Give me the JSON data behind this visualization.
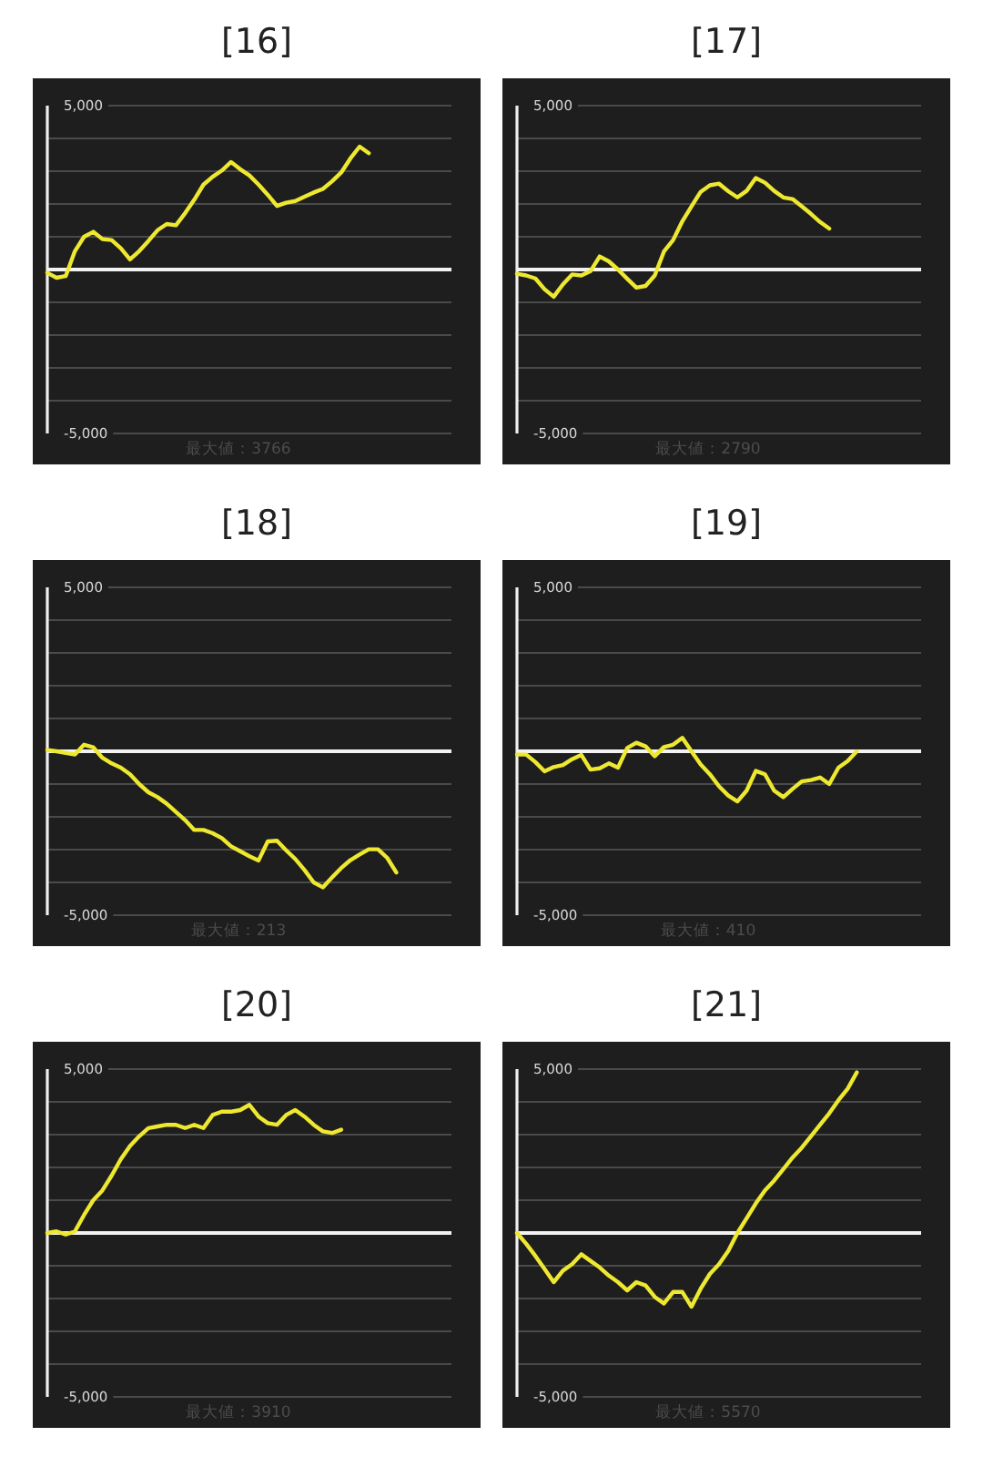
{
  "chart_data": [
    {
      "type": "line",
      "title": "[16]",
      "categories": [
        null,
        null,
        null,
        null,
        null,
        null,
        null,
        null,
        null,
        null,
        null,
        null,
        null,
        null,
        null,
        null,
        null,
        null,
        null,
        null,
        null,
        null,
        null,
        null,
        null,
        null,
        null,
        null,
        null,
        null,
        null,
        null,
        null,
        null,
        null,
        null,
        null,
        null,
        null,
        null,
        null,
        null,
        null,
        null,
        null
      ],
      "series": [
        {
          "color": "#eee830",
          "values": [
            -100,
            -250,
            -200,
            560,
            1000,
            1150,
            930,
            900,
            650,
            310,
            560,
            870,
            1200,
            1390,
            1350,
            1720,
            2130,
            2590,
            2830,
            3020,
            3280,
            3060,
            2870,
            2590,
            2280,
            1940,
            2040,
            2090,
            2220,
            2350,
            2460,
            2690,
            2960,
            3390,
            3750,
            3550,
            null,
            null,
            null,
            null,
            null,
            null,
            null,
            null,
            null
          ]
        }
      ],
      "ylim": [
        -5000,
        5000
      ],
      "yticks": [
        {
          "value": 5000,
          "label": "5,000"
        },
        {
          "value": 4000,
          "label": null
        },
        {
          "value": 3000,
          "label": null
        },
        {
          "value": 2000,
          "label": null
        },
        {
          "value": 1000,
          "label": null
        },
        {
          "value": 0,
          "label": null
        },
        {
          "value": -1000,
          "label": null
        },
        {
          "value": -2000,
          "label": null
        },
        {
          "value": -3000,
          "label": null
        },
        {
          "value": -4000,
          "label": null
        },
        {
          "value": -5000,
          "label": "-5,000"
        }
      ],
      "grid": "y",
      "tick_labels": "y",
      "ref_lines": [
        {
          "axis": "y",
          "value": 0,
          "color": "#f2f2f2"
        }
      ],
      "annotations": [
        "最大値：3766"
      ]
    },
    {
      "type": "line",
      "title": "[17]",
      "categories": [
        null,
        null,
        null,
        null,
        null,
        null,
        null,
        null,
        null,
        null,
        null,
        null,
        null,
        null,
        null,
        null,
        null,
        null,
        null,
        null,
        null,
        null,
        null,
        null,
        null,
        null,
        null,
        null,
        null,
        null,
        null,
        null,
        null,
        null,
        null,
        null,
        null,
        null,
        null,
        null,
        null,
        null,
        null,
        null,
        null
      ],
      "series": [
        {
          "color": "#eee830",
          "values": [
            -130,
            -180,
            -270,
            -600,
            -830,
            -450,
            -150,
            -180,
            -50,
            400,
            250,
            0,
            -280,
            -550,
            -500,
            -180,
            550,
            900,
            1470,
            1930,
            2370,
            2570,
            2620,
            2390,
            2200,
            2400,
            2790,
            2650,
            2400,
            2200,
            2150,
            1930,
            1700,
            1450,
            1250,
            null,
            null,
            null,
            null,
            null,
            null,
            null,
            null,
            null,
            null
          ]
        }
      ],
      "ylim": [
        -5000,
        5000
      ],
      "yticks": [
        {
          "value": 5000,
          "label": "5,000"
        },
        {
          "value": 4000,
          "label": null
        },
        {
          "value": 3000,
          "label": null
        },
        {
          "value": 2000,
          "label": null
        },
        {
          "value": 1000,
          "label": null
        },
        {
          "value": 0,
          "label": null
        },
        {
          "value": -1000,
          "label": null
        },
        {
          "value": -2000,
          "label": null
        },
        {
          "value": -3000,
          "label": null
        },
        {
          "value": -4000,
          "label": null
        },
        {
          "value": -5000,
          "label": "-5,000"
        }
      ],
      "grid": "y",
      "tick_labels": "y",
      "ref_lines": [
        {
          "axis": "y",
          "value": 0,
          "color": "#f2f2f2"
        }
      ],
      "annotations": [
        "最大値：2790"
      ]
    },
    {
      "type": "line",
      "title": "[18]",
      "categories": [
        null,
        null,
        null,
        null,
        null,
        null,
        null,
        null,
        null,
        null,
        null,
        null,
        null,
        null,
        null,
        null,
        null,
        null,
        null,
        null,
        null,
        null,
        null,
        null,
        null,
        null,
        null,
        null,
        null,
        null,
        null,
        null,
        null,
        null,
        null,
        null,
        null,
        null,
        null,
        null,
        null,
        null,
        null,
        null,
        null
      ],
      "series": [
        {
          "color": "#eee830",
          "values": [
            40,
            0,
            -50,
            -100,
            200,
            120,
            -200,
            -370,
            -500,
            -700,
            -1000,
            -1250,
            -1400,
            -1600,
            -1850,
            -2100,
            -2400,
            -2400,
            -2500,
            -2650,
            -2900,
            -3050,
            -3200,
            -3330,
            -2750,
            -2730,
            -3020,
            -3290,
            -3620,
            -4000,
            -4150,
            -3850,
            -3560,
            -3320,
            -3150,
            -2990,
            -2990,
            -3250,
            -3700,
            null,
            null,
            null,
            null,
            null,
            null
          ]
        }
      ],
      "ylim": [
        -5000,
        5000
      ],
      "yticks": [
        {
          "value": 5000,
          "label": "5,000"
        },
        {
          "value": 4000,
          "label": null
        },
        {
          "value": 3000,
          "label": null
        },
        {
          "value": 2000,
          "label": null
        },
        {
          "value": 1000,
          "label": null
        },
        {
          "value": 0,
          "label": null
        },
        {
          "value": -1000,
          "label": null
        },
        {
          "value": -2000,
          "label": null
        },
        {
          "value": -3000,
          "label": null
        },
        {
          "value": -4000,
          "label": null
        },
        {
          "value": -5000,
          "label": "-5,000"
        }
      ],
      "grid": "y",
      "tick_labels": "y",
      "ref_lines": [
        {
          "axis": "y",
          "value": 0,
          "color": "#f2f2f2"
        }
      ],
      "annotations": [
        "最大値：213"
      ]
    },
    {
      "type": "line",
      "title": "[19]",
      "categories": [
        null,
        null,
        null,
        null,
        null,
        null,
        null,
        null,
        null,
        null,
        null,
        null,
        null,
        null,
        null,
        null,
        null,
        null,
        null,
        null,
        null,
        null,
        null,
        null,
        null,
        null,
        null,
        null,
        null,
        null,
        null,
        null,
        null,
        null,
        null,
        null,
        null,
        null,
        null,
        null,
        null,
        null,
        null,
        null,
        null
      ],
      "series": [
        {
          "color": "#eee830",
          "values": [
            -100,
            -100,
            -330,
            -610,
            -480,
            -420,
            -240,
            -110,
            -560,
            -520,
            -370,
            -500,
            100,
            260,
            150,
            -150,
            130,
            200,
            410,
            0,
            -400,
            -700,
            -1070,
            -1350,
            -1530,
            -1200,
            -600,
            -700,
            -1200,
            -1400,
            -1150,
            -920,
            -880,
            -800,
            -1000,
            -500,
            -300,
            0,
            null,
            null,
            null,
            null,
            null,
            null,
            null
          ]
        }
      ],
      "ylim": [
        -5000,
        5000
      ],
      "yticks": [
        {
          "value": 5000,
          "label": "5,000"
        },
        {
          "value": 4000,
          "label": null
        },
        {
          "value": 3000,
          "label": null
        },
        {
          "value": 2000,
          "label": null
        },
        {
          "value": 1000,
          "label": null
        },
        {
          "value": 0,
          "label": null
        },
        {
          "value": -1000,
          "label": null
        },
        {
          "value": -2000,
          "label": null
        },
        {
          "value": -3000,
          "label": null
        },
        {
          "value": -4000,
          "label": null
        },
        {
          "value": -5000,
          "label": "-5,000"
        }
      ],
      "grid": "y",
      "tick_labels": "y",
      "ref_lines": [
        {
          "axis": "y",
          "value": 0,
          "color": "#f2f2f2"
        }
      ],
      "annotations": [
        "最大値：410"
      ]
    },
    {
      "type": "line",
      "title": "[20]",
      "categories": [
        null,
        null,
        null,
        null,
        null,
        null,
        null,
        null,
        null,
        null,
        null,
        null,
        null,
        null,
        null,
        null,
        null,
        null,
        null,
        null,
        null,
        null,
        null,
        null,
        null,
        null,
        null,
        null,
        null,
        null,
        null,
        null,
        null,
        null,
        null,
        null,
        null,
        null,
        null,
        null,
        null,
        null,
        null,
        null,
        null
      ],
      "series": [
        {
          "color": "#eee830",
          "values": [
            0,
            50,
            -50,
            50,
            550,
            1000,
            1300,
            1750,
            2250,
            2650,
            2950,
            3200,
            3250,
            3300,
            3300,
            3200,
            3300,
            3200,
            3600,
            3700,
            3700,
            3750,
            3910,
            3550,
            3350,
            3300,
            3600,
            3750,
            3550,
            3300,
            3100,
            3050,
            3150,
            null,
            null,
            null,
            null,
            null,
            null,
            null,
            null,
            null,
            null,
            null,
            null
          ]
        }
      ],
      "ylim": [
        -5000,
        5000
      ],
      "yticks": [
        {
          "value": 5000,
          "label": "5,000"
        },
        {
          "value": 4000,
          "label": null
        },
        {
          "value": 3000,
          "label": null
        },
        {
          "value": 2000,
          "label": null
        },
        {
          "value": 1000,
          "label": null
        },
        {
          "value": 0,
          "label": null
        },
        {
          "value": -1000,
          "label": null
        },
        {
          "value": -2000,
          "label": null
        },
        {
          "value": -3000,
          "label": null
        },
        {
          "value": -4000,
          "label": null
        },
        {
          "value": -5000,
          "label": "-5,000"
        }
      ],
      "grid": "y",
      "tick_labels": "y",
      "ref_lines": [
        {
          "axis": "y",
          "value": 0,
          "color": "#f2f2f2"
        }
      ],
      "annotations": [
        "最大値：3910"
      ]
    },
    {
      "type": "line",
      "title": "[21]",
      "categories": [
        null,
        null,
        null,
        null,
        null,
        null,
        null,
        null,
        null,
        null,
        null,
        null,
        null,
        null,
        null,
        null,
        null,
        null,
        null,
        null,
        null,
        null,
        null,
        null,
        null,
        null,
        null,
        null,
        null,
        null,
        null,
        null,
        null,
        null,
        null,
        null,
        null,
        null,
        null,
        null,
        null,
        null,
        null,
        null,
        null
      ],
      "series": [
        {
          "color": "#eee830",
          "values": [
            0,
            -330,
            -700,
            -1100,
            -1500,
            -1150,
            -950,
            -650,
            -850,
            -1050,
            -1300,
            -1500,
            -1750,
            -1500,
            -1600,
            -1950,
            -2150,
            -1800,
            -1800,
            -2250,
            -1700,
            -1250,
            -950,
            -550,
            0,
            450,
            900,
            1300,
            1600,
            1950,
            2300,
            2600,
            2950,
            3300,
            3650,
            4050,
            4400,
            4900,
            null,
            null,
            null,
            null,
            null,
            null,
            null
          ]
        }
      ],
      "ylim": [
        -5000,
        5000
      ],
      "yticks": [
        {
          "value": 5000,
          "label": "5,000"
        },
        {
          "value": 4000,
          "label": null
        },
        {
          "value": 3000,
          "label": null
        },
        {
          "value": 2000,
          "label": null
        },
        {
          "value": 1000,
          "label": null
        },
        {
          "value": 0,
          "label": null
        },
        {
          "value": -1000,
          "label": null
        },
        {
          "value": -2000,
          "label": null
        },
        {
          "value": -3000,
          "label": null
        },
        {
          "value": -4000,
          "label": null
        },
        {
          "value": -5000,
          "label": "-5,000"
        }
      ],
      "grid": "y",
      "tick_labels": "y",
      "ref_lines": [
        {
          "axis": "y",
          "value": 0,
          "color": "#f2f2f2"
        }
      ],
      "annotations": [
        "最大値：5570"
      ]
    }
  ]
}
